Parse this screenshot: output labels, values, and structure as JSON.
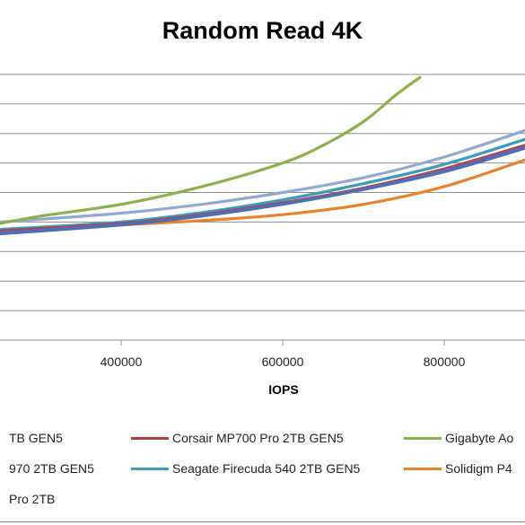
{
  "chart_data": {
    "type": "line",
    "title": "Random Read 4K",
    "xlabel": "IOPS",
    "ylabel": "",
    "xlim": [
      250000,
      900000
    ],
    "ylim": [
      0,
      10
    ],
    "x_ticks": [
      400000,
      600000,
      800000
    ],
    "x_tick_labels": [
      "400000",
      "600000",
      "800000"
    ],
    "y_grid_values": [
      1,
      2,
      3,
      4,
      5,
      6,
      7,
      8,
      9
    ],
    "grid": "horizontal",
    "legend_position": "bottom",
    "series": [
      {
        "name": "...TB GEN5",
        "color": "#4a6fb5",
        "points": [
          [
            250000,
            3.6
          ],
          [
            400000,
            3.9
          ],
          [
            500000,
            4.2
          ],
          [
            600000,
            4.6
          ],
          [
            700000,
            5.1
          ],
          [
            800000,
            5.7
          ],
          [
            900000,
            6.5
          ]
        ]
      },
      {
        "name": "Corsair MP700 Pro 2TB GEN5",
        "color": "#b0403c",
        "points": [
          [
            250000,
            3.7
          ],
          [
            400000,
            3.95
          ],
          [
            500000,
            4.25
          ],
          [
            600000,
            4.65
          ],
          [
            700000,
            5.15
          ],
          [
            800000,
            5.8
          ],
          [
            900000,
            6.6
          ]
        ]
      },
      {
        "name": "Gigabyte Ao...",
        "color": "#8db04b",
        "points": [
          [
            250000,
            3.95
          ],
          [
            300000,
            4.2
          ],
          [
            400000,
            4.6
          ],
          [
            500000,
            5.2
          ],
          [
            600000,
            6.0
          ],
          [
            650000,
            6.6
          ],
          [
            700000,
            7.4
          ],
          [
            740000,
            8.3
          ],
          [
            770000,
            8.9
          ]
        ]
      },
      {
        "name": "...970 2TB GEN5",
        "color": "#7b5ea7",
        "points": [
          [
            250000,
            3.65
          ],
          [
            400000,
            3.92
          ],
          [
            500000,
            4.22
          ],
          [
            600000,
            4.62
          ],
          [
            700000,
            5.12
          ],
          [
            800000,
            5.75
          ],
          [
            900000,
            6.55
          ]
        ]
      },
      {
        "name": "Seagate Firecuda 540 2TB GEN5",
        "color": "#3d9ab9",
        "points": [
          [
            250000,
            3.75
          ],
          [
            400000,
            4.0
          ],
          [
            500000,
            4.32
          ],
          [
            600000,
            4.75
          ],
          [
            700000,
            5.3
          ],
          [
            800000,
            5.95
          ],
          [
            900000,
            6.8
          ]
        ]
      },
      {
        "name": "Solidigm P4...",
        "color": "#e8822c",
        "points": [
          [
            250000,
            3.75
          ],
          [
            400000,
            3.9
          ],
          [
            500000,
            4.05
          ],
          [
            600000,
            4.25
          ],
          [
            700000,
            4.6
          ],
          [
            800000,
            5.2
          ],
          [
            900000,
            6.1
          ]
        ]
      },
      {
        "name": "...Pro 2TB",
        "color": "#91a8d0",
        "points": [
          [
            250000,
            4.0
          ],
          [
            400000,
            4.3
          ],
          [
            500000,
            4.6
          ],
          [
            600000,
            5.0
          ],
          [
            700000,
            5.5
          ],
          [
            800000,
            6.2
          ],
          [
            900000,
            7.1
          ]
        ]
      }
    ]
  },
  "legend_rows": [
    [
      0,
      1,
      2
    ],
    [
      3,
      4,
      5
    ],
    [
      6
    ]
  ]
}
